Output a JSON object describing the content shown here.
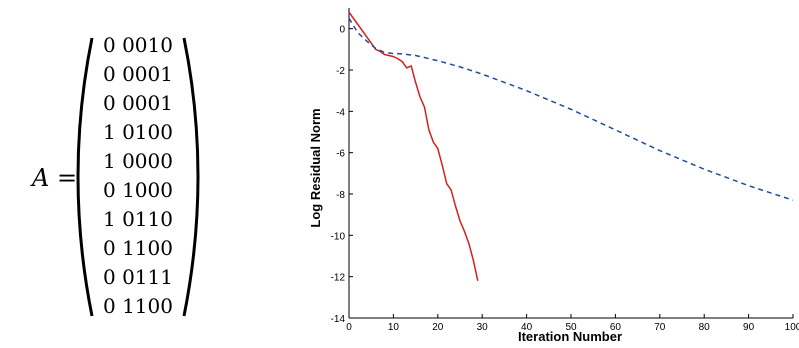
{
  "matrix": {
    "lhs": "A =",
    "rows": [
      "0 0010",
      "0 0001",
      "0 0001",
      "1 0100",
      "1 0000",
      "0 1000",
      "1 0110",
      "0 1100",
      "0 0111",
      "0 1100"
    ]
  },
  "chart_data": {
    "type": "line",
    "title": "",
    "xlabel": "Iteration Number",
    "ylabel": "Log Residual Norm",
    "xlim": [
      0,
      100
    ],
    "ylim": [
      -14,
      1
    ],
    "xticks": [
      0,
      10,
      20,
      30,
      40,
      50,
      60,
      70,
      80,
      90,
      100
    ],
    "yticks": [
      0,
      -2,
      -4,
      -6,
      -8,
      -10,
      -12,
      -14
    ],
    "grid": false,
    "legend": "none",
    "series": [
      {
        "color": "#d62020",
        "style": "solid",
        "x": [
          0,
          1,
          2,
          3,
          4,
          5,
          6,
          7,
          8,
          9,
          10,
          11,
          12,
          13,
          14,
          15,
          16,
          17,
          18,
          19,
          20,
          21,
          22,
          23,
          24,
          25,
          26,
          27,
          28,
          29
        ],
        "y": [
          0.8,
          0.5,
          0.2,
          -0.1,
          -0.4,
          -0.7,
          -1.0,
          -1.1,
          -1.25,
          -1.3,
          -1.35,
          -1.45,
          -1.6,
          -1.9,
          -1.8,
          -2.6,
          -3.3,
          -3.8,
          -4.9,
          -5.5,
          -5.8,
          -6.6,
          -7.5,
          -7.8,
          -8.6,
          -9.3,
          -9.8,
          -10.4,
          -11.2,
          -12.2
        ]
      },
      {
        "color": "#1f4e9c",
        "style": "dashed",
        "x": [
          0,
          2,
          4,
          6,
          8,
          10,
          12,
          15,
          20,
          25,
          30,
          40,
          50,
          60,
          70,
          80,
          90,
          100
        ],
        "y": [
          0.5,
          -0.2,
          -0.6,
          -0.95,
          -1.15,
          -1.2,
          -1.22,
          -1.3,
          -1.55,
          -1.85,
          -2.2,
          -3.0,
          -3.9,
          -4.9,
          -5.9,
          -6.8,
          -7.6,
          -8.3
        ]
      }
    ]
  }
}
